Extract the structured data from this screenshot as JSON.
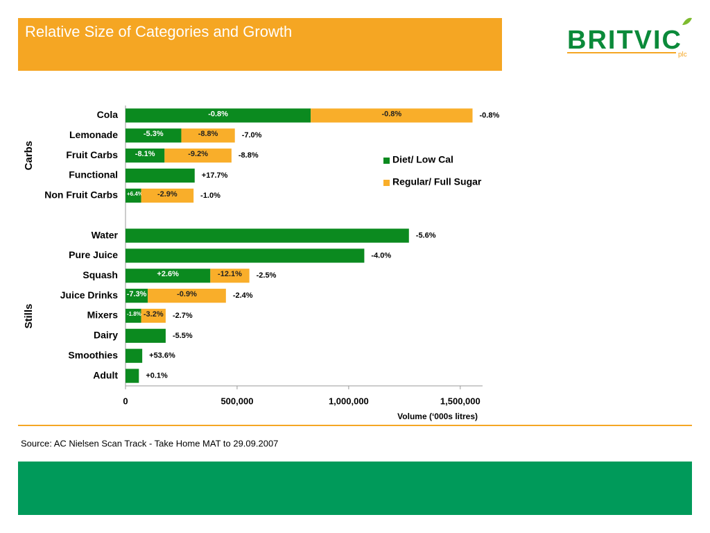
{
  "header": {
    "title": "Relative Size of Categories and Growth"
  },
  "logo": {
    "name": "BRITVIC",
    "suffix": "plc"
  },
  "chart_data": {
    "type": "stacked-barh",
    "categories": [
      "Cola",
      "Lemonade",
      "Fruit Carbs",
      "Functional",
      "Non Fruit Carbs",
      null,
      "Water",
      "Pure Juice",
      "Squash",
      "Juice Drinks",
      "Mixers",
      "Dairy",
      "Smoothies",
      "Adult"
    ],
    "groups": [
      "Carbs",
      "Stills"
    ],
    "series": [
      {
        "name": "Diet/ Low Cal",
        "color": "#0b8a1f",
        "values": [
          830000,
          250000,
          175000,
          310000,
          70000,
          null,
          1270000,
          1070000,
          380000,
          100000,
          70000,
          180000,
          75000,
          60000
        ],
        "growth_labels": [
          "-0.8%",
          "-5.3%",
          "-8.1%",
          null,
          "+6.4%",
          null,
          null,
          null,
          "+2.6%",
          "-7.3%",
          "-1.8%",
          null,
          null,
          null
        ]
      },
      {
        "name": "Regular/ Full Sugar",
        "color": "#f9ae2a",
        "values": [
          725000,
          240000,
          300000,
          null,
          235000,
          null,
          null,
          null,
          175000,
          350000,
          110000,
          null,
          null,
          null
        ],
        "growth_labels": [
          "-0.8%",
          "-8.8%",
          "-9.2%",
          null,
          "-2.9%",
          null,
          null,
          null,
          "-12.1%",
          "-0.9%",
          "-3.2%",
          null,
          null,
          null
        ]
      }
    ],
    "total_growth_labels": [
      "-0.8%",
      "-7.0%",
      "-8.8%",
      "+17.7%",
      "-1.0%",
      null,
      "-5.6%",
      "-4.0%",
      "-2.5%",
      "-2.4%",
      "-2.7%",
      "-5.5%",
      "+53.6%",
      "+0.1%"
    ],
    "xlim": [
      0,
      1600000
    ],
    "xticks": [
      0,
      {
        "value": 500000,
        "label": "500,000"
      },
      {
        "value": 1000000,
        "label": "1,000,000"
      },
      {
        "value": 1500000,
        "label": "1,500,000"
      }
    ],
    "xlabel": "Volume (‘000s litres)",
    "legend": "right"
  },
  "footer": {
    "source": "Source: AC Nielsen Scan Track - Take Home MAT to 29.09.2007"
  }
}
